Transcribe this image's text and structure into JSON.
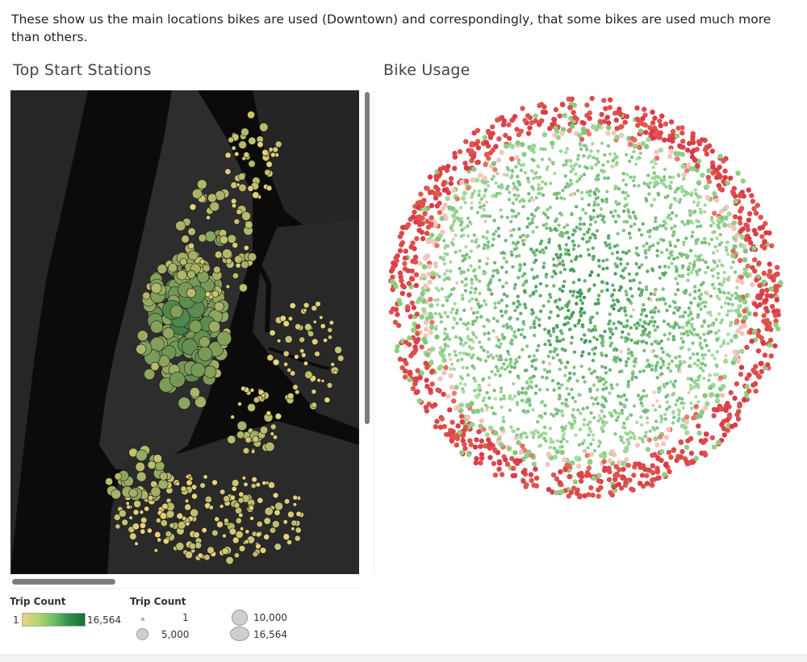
{
  "description": "These show us the main locations bikes are used (Downtown) and correspondingly, that some bikes are used much more than others.",
  "map": {
    "title": "Top Start Stations",
    "background_color": "#0b0b0b",
    "land_color": "#2b2b2b",
    "low_color": "#e6d37a",
    "high_color": "#1d6a3a"
  },
  "usage": {
    "title": "Bike Usage",
    "high_color": "#2e8b4a",
    "low_color": "#e05a4e"
  },
  "legend": {
    "color": {
      "title": "Trip Count",
      "min_label": "1",
      "max_label": "16,564"
    },
    "size": {
      "title": "Trip Count",
      "items": [
        "1",
        "5,000",
        "10,000",
        "16,564"
      ]
    }
  }
}
